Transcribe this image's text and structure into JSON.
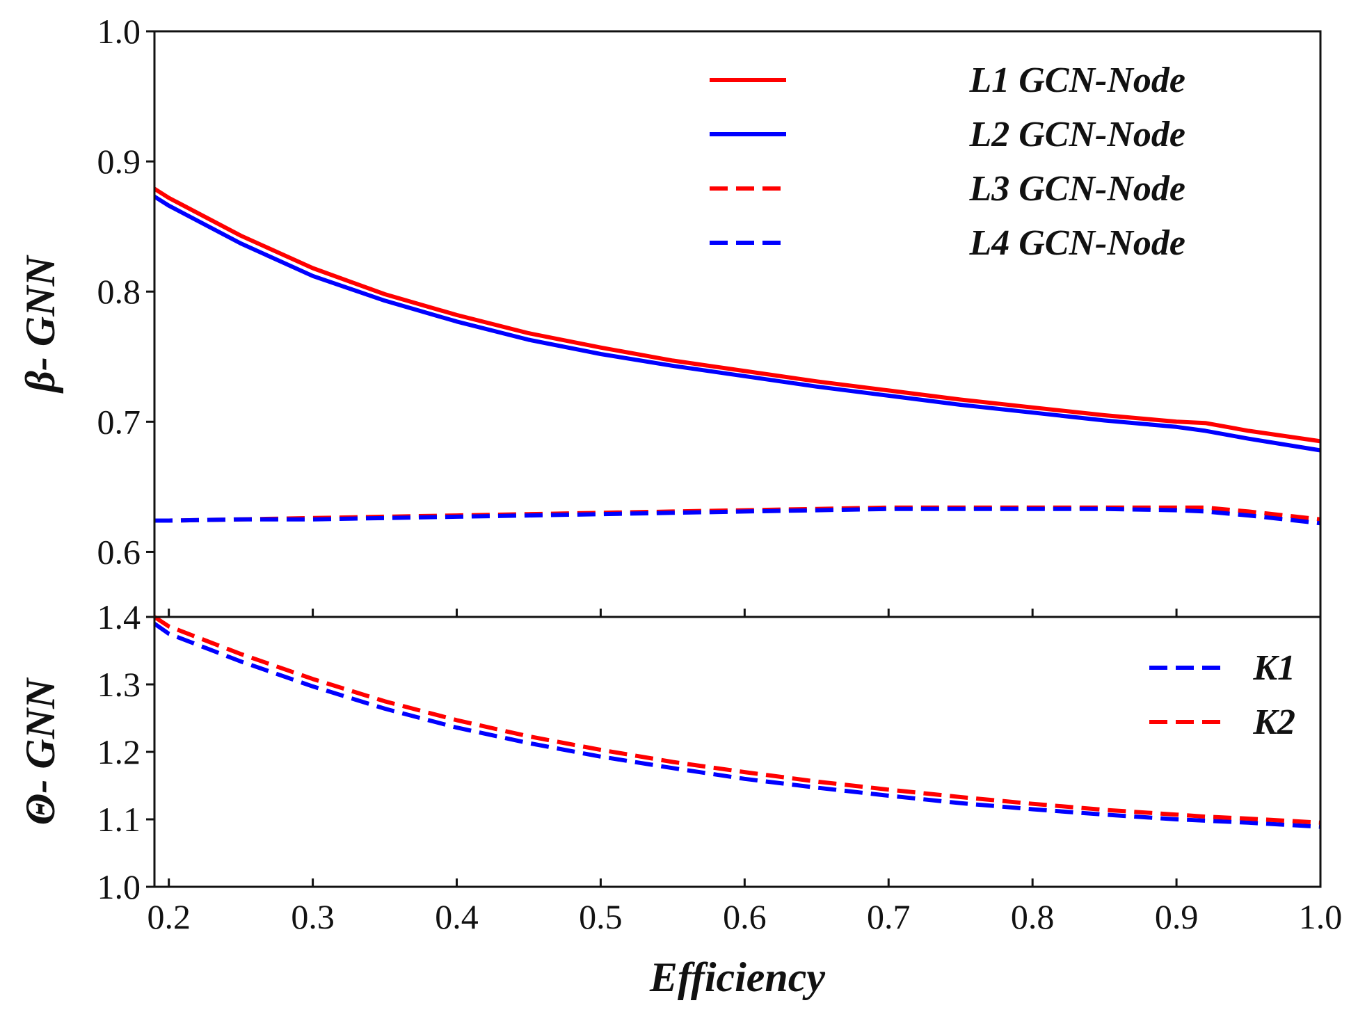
{
  "chart_data": {
    "type": "line",
    "xlabel": "Efficiency",
    "xlim": [
      0.19,
      1.0
    ],
    "xticks": [
      "0.2",
      "0.3",
      "0.4",
      "0.5",
      "0.6",
      "0.7",
      "0.8",
      "0.9",
      "1.0"
    ],
    "x": [
      0.19,
      0.2,
      0.25,
      0.3,
      0.35,
      0.4,
      0.45,
      0.5,
      0.55,
      0.6,
      0.65,
      0.7,
      0.75,
      0.8,
      0.85,
      0.9,
      0.92,
      0.95,
      1.0
    ],
    "panels": [
      {
        "id": "top",
        "ylabel": "β- GNN",
        "ylim": [
          0.55,
          1.0
        ],
        "yticks": [
          "0.6",
          "0.7",
          "0.8",
          "0.9",
          "1.0"
        ],
        "legend_position": "top-right",
        "series": [
          {
            "name": "L1 GCN-Node",
            "color": "#ff0000",
            "dash": "solid",
            "values": [
              0.879,
              0.872,
              0.843,
              0.818,
              0.798,
              0.782,
              0.768,
              0.757,
              0.747,
              0.739,
              0.731,
              0.724,
              0.717,
              0.711,
              0.705,
              0.7,
              0.699,
              0.693,
              0.685
            ]
          },
          {
            "name": "L2 GCN-Node",
            "color": "#0000ff",
            "dash": "solid",
            "values": [
              0.873,
              0.866,
              0.837,
              0.812,
              0.793,
              0.777,
              0.763,
              0.752,
              0.743,
              0.735,
              0.727,
              0.72,
              0.713,
              0.707,
              0.701,
              0.696,
              0.693,
              0.687,
              0.678
            ]
          },
          {
            "name": "L3 GCN-Node",
            "color": "#ff0000",
            "dash": "dashed",
            "values": [
              0.624,
              0.624,
              0.625,
              0.626,
              0.627,
              0.628,
              0.629,
              0.63,
              0.631,
              0.632,
              0.633,
              0.634,
              0.634,
              0.634,
              0.634,
              0.634,
              0.634,
              0.631,
              0.625
            ]
          },
          {
            "name": "L4 GCN-Node",
            "color": "#0000ff",
            "dash": "dashed",
            "values": [
              0.624,
              0.624,
              0.625,
              0.625,
              0.626,
              0.627,
              0.628,
              0.629,
              0.63,
              0.631,
              0.632,
              0.633,
              0.633,
              0.633,
              0.633,
              0.632,
              0.631,
              0.628,
              0.622
            ]
          }
        ]
      },
      {
        "id": "bottom",
        "ylabel": "Θ- GNN",
        "ylim": [
          1.0,
          1.4
        ],
        "yticks": [
          "1.0",
          "1.1",
          "1.2",
          "1.3",
          "1.4"
        ],
        "legend_position": "top-right",
        "series": [
          {
            "name": "K1",
            "color": "#0000ff",
            "dash": "dashed",
            "values": [
              1.39,
              1.375,
              1.334,
              1.297,
              1.264,
              1.236,
              1.213,
              1.193,
              1.176,
              1.16,
              1.147,
              1.135,
              1.124,
              1.115,
              1.107,
              1.1,
              1.098,
              1.095,
              1.089
            ]
          },
          {
            "name": "K2",
            "color": "#ff0000",
            "dash": "dashed",
            "values": [
              1.4,
              1.386,
              1.345,
              1.308,
              1.275,
              1.247,
              1.223,
              1.203,
              1.185,
              1.17,
              1.156,
              1.144,
              1.133,
              1.123,
              1.114,
              1.107,
              1.104,
              1.101,
              1.095
            ]
          }
        ]
      }
    ]
  }
}
